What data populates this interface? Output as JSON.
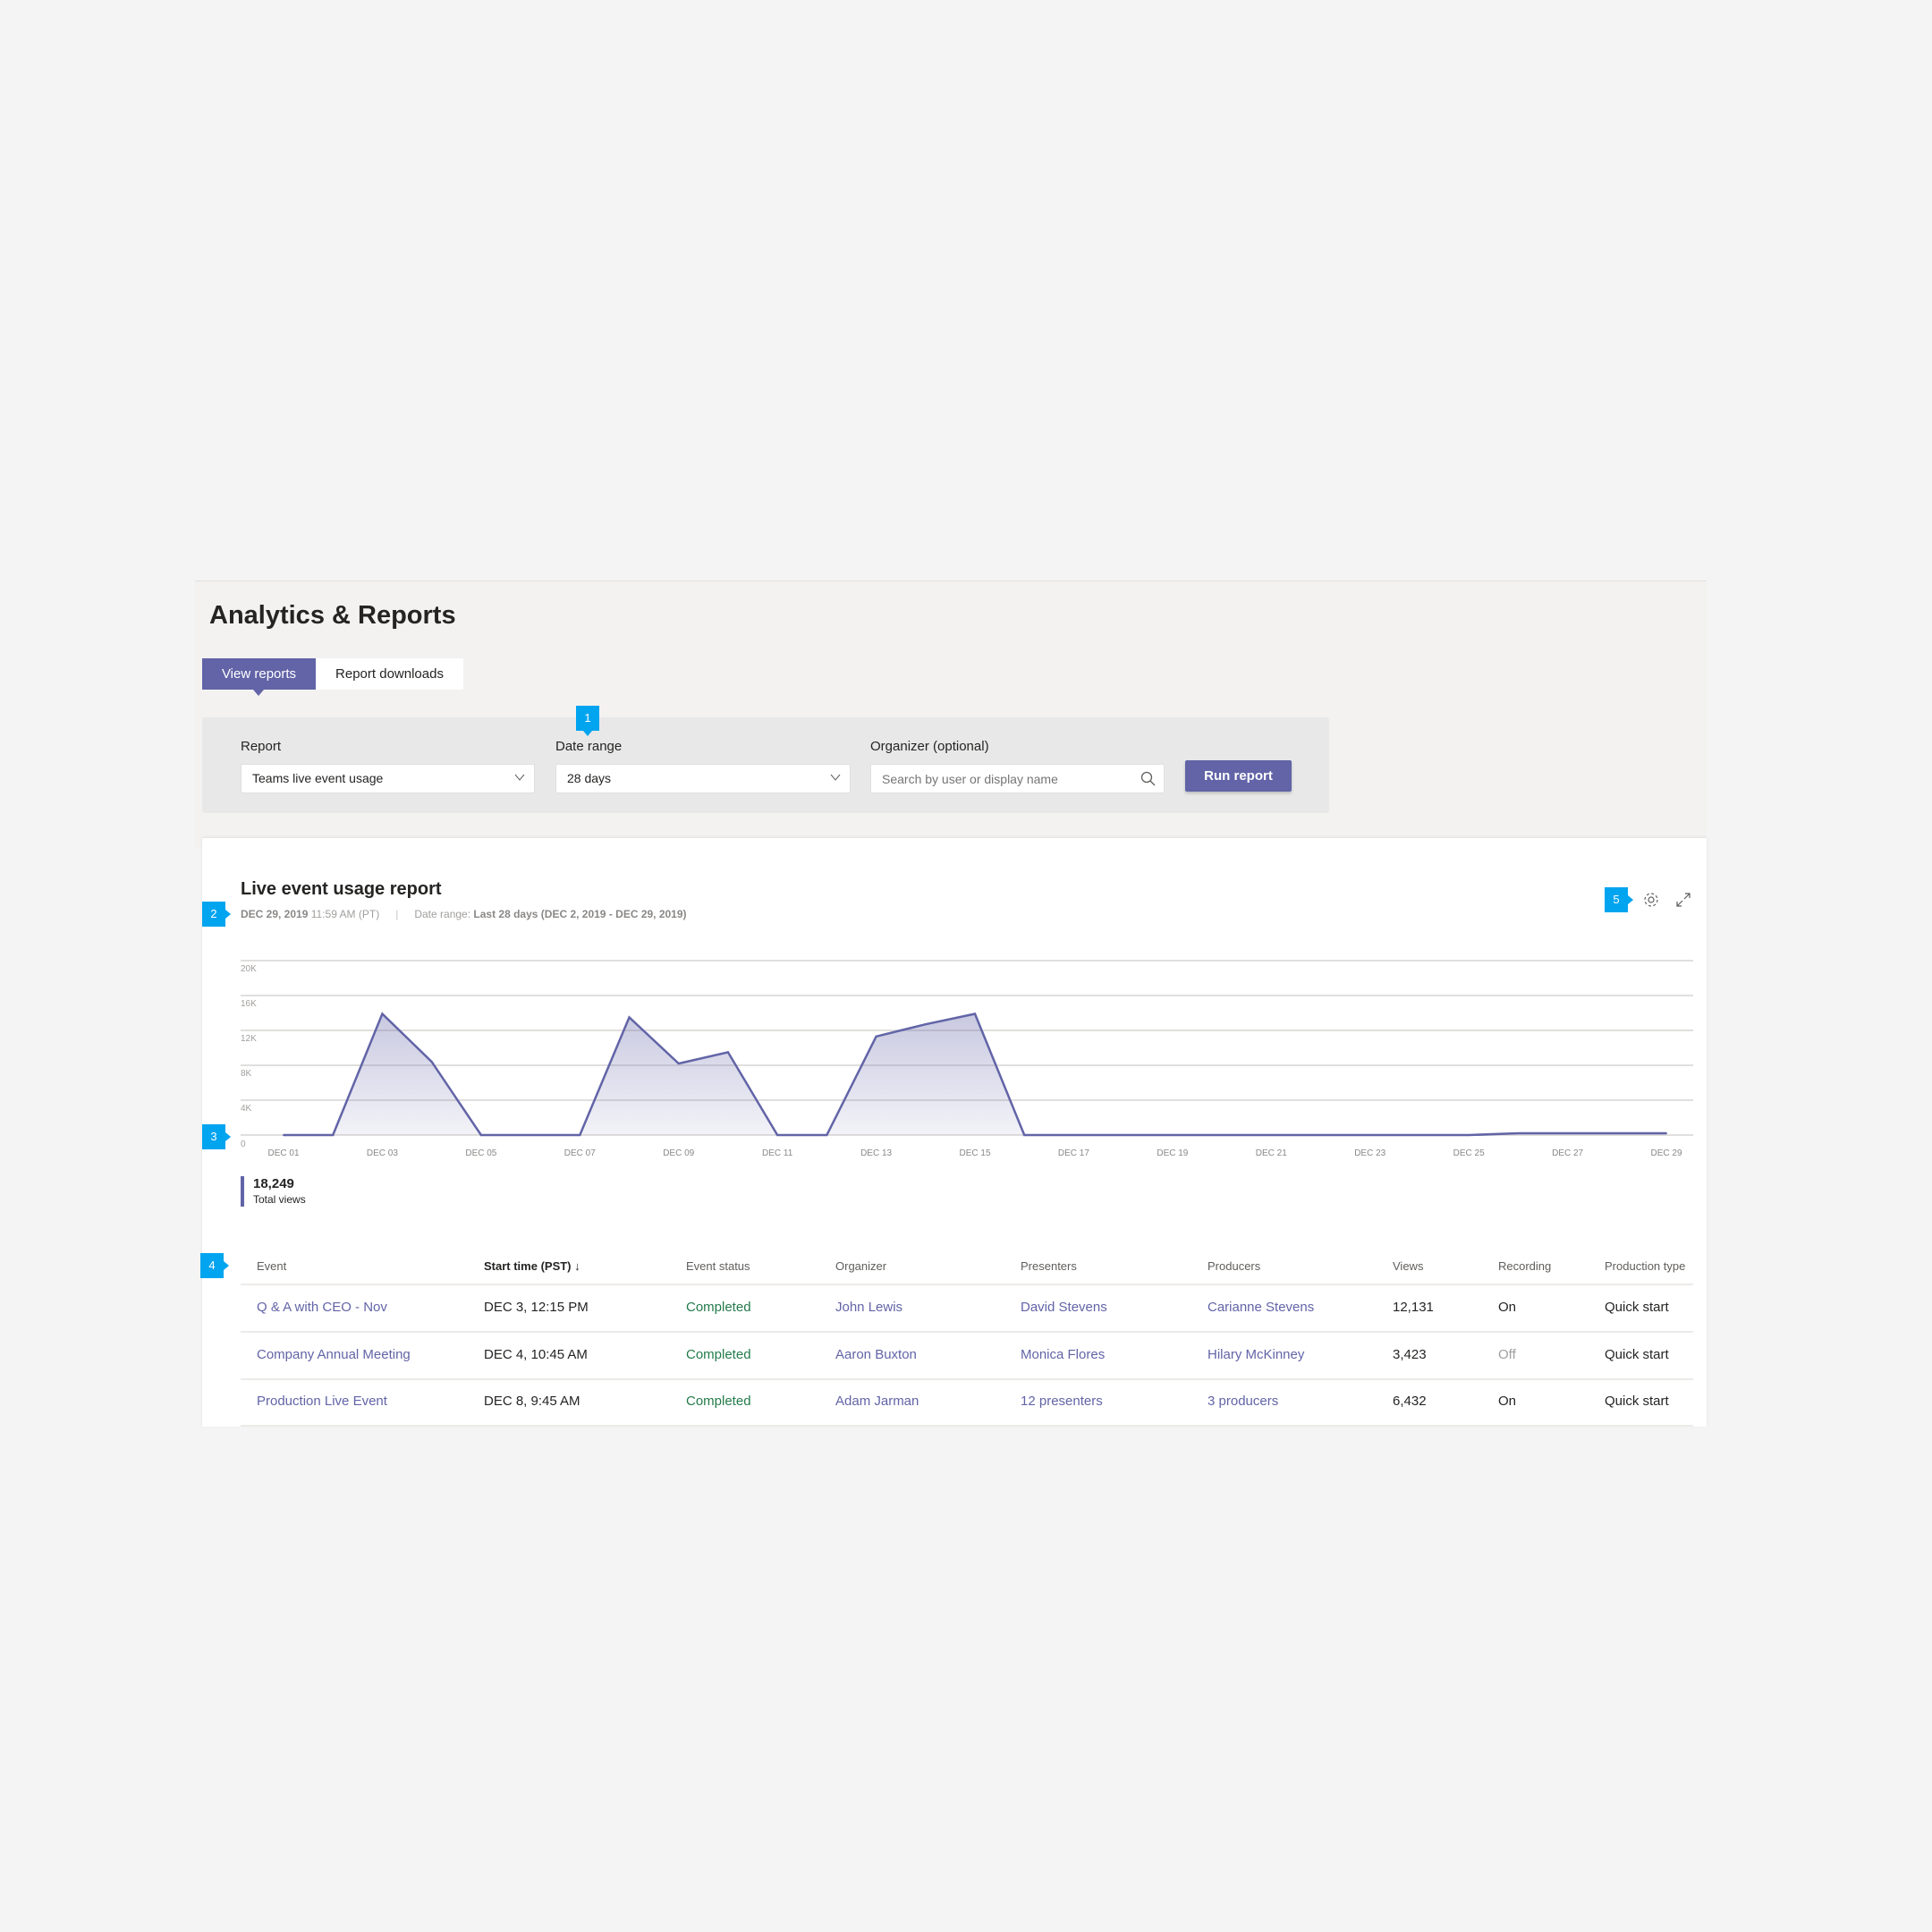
{
  "header": {
    "title": "Analytics & Reports"
  },
  "tabs": [
    {
      "label": "View reports",
      "active": true
    },
    {
      "label": "Report downloads",
      "active": false
    }
  ],
  "filters": {
    "report_label": "Report",
    "report_value": "Teams live event usage",
    "date_label": "Date range",
    "date_value": "28 days",
    "organizer_label": "Organizer (optional)",
    "organizer_placeholder": "Search by user or display name",
    "run_label": "Run report"
  },
  "callouts": [
    "1",
    "2",
    "3",
    "4",
    "5"
  ],
  "report": {
    "title": "Live event usage report",
    "timestamp": "DEC 29, 2019",
    "time": "11:59 AM (PT)",
    "range_label": "Date range:",
    "range_value": "Last 28 days (DEC 2, 2019 - DEC 29, 2019)",
    "total_value": "18,249",
    "total_label": "Total views"
  },
  "accent": "#6264a7",
  "callout_color": "#00a4ef",
  "chart_data": {
    "type": "area",
    "x": [
      "DEC 01",
      "DEC 02",
      "DEC 03",
      "DEC 04",
      "DEC 05",
      "DEC 06",
      "DEC 07",
      "DEC 08",
      "DEC 09",
      "DEC 10",
      "DEC 11",
      "DEC 12",
      "DEC 13",
      "DEC 14",
      "DEC 15",
      "DEC 16",
      "DEC 17",
      "DEC 18",
      "DEC 19",
      "DEC 20",
      "DEC 21",
      "DEC 22",
      "DEC 23",
      "DEC 24",
      "DEC 25",
      "DEC 26",
      "DEC 27",
      "DEC 28",
      "DEC 29"
    ],
    "values": [
      0,
      0,
      13900,
      8400,
      0,
      0,
      0,
      13500,
      8200,
      9500,
      0,
      0,
      11300,
      12700,
      13900,
      0,
      0,
      0,
      0,
      0,
      0,
      0,
      0,
      0,
      0,
      200,
      200,
      200,
      200
    ],
    "xticks": [
      "DEC 01",
      "DEC 03",
      "DEC 05",
      "DEC 07",
      "DEC 09",
      "DEC 11",
      "DEC 13",
      "DEC 15",
      "DEC 17",
      "DEC 19",
      "DEC 21",
      "DEC 23",
      "DEC 25",
      "DEC 27",
      "DEC 29"
    ],
    "yticks": [
      "0",
      "4K",
      "8K",
      "12K",
      "16K",
      "20K"
    ],
    "ylim": [
      0,
      20000
    ],
    "grid": true,
    "color": "#6264a7"
  },
  "table": {
    "columns": [
      "Event",
      "Start time (PST) ↓",
      "Event status",
      "Organizer",
      "Presenters",
      "Producers",
      "Views",
      "Recording",
      "Production type"
    ],
    "rows": [
      [
        "Q & A with CEO - Nov",
        "DEC 3, 12:15 PM",
        "Completed",
        "John Lewis",
        "David Stevens",
        "Carianne Stevens",
        "12,131",
        "On",
        "Quick start"
      ],
      [
        "Company Annual Meeting",
        "DEC 4, 10:45 AM",
        "Completed",
        "Aaron Buxton",
        "Monica Flores",
        "Hilary McKinney",
        "3,423",
        "Off",
        "Quick start"
      ],
      [
        "Production Live Event",
        "DEC 8, 9:45 AM",
        "Completed",
        "Adam Jarman",
        "12 presenters",
        "3 producers",
        "6,432",
        "On",
        "Quick start"
      ]
    ]
  }
}
